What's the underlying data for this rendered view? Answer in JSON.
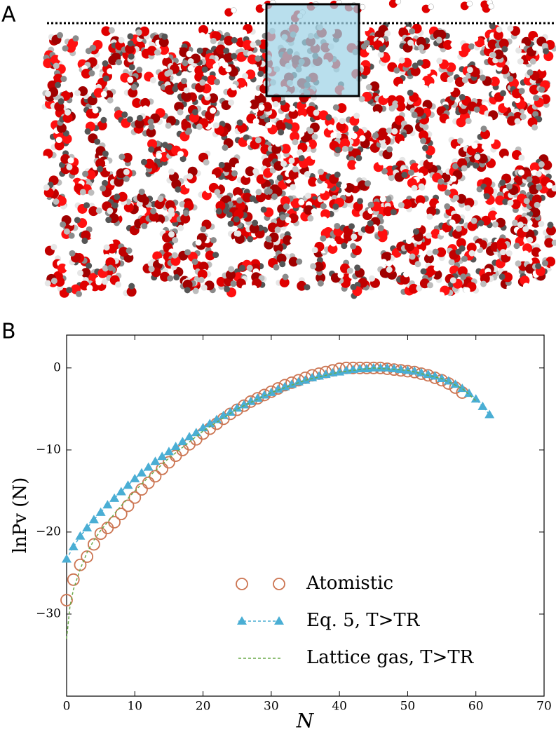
{
  "figure": {
    "panel_a_label": "A",
    "panel_b_label": "B"
  },
  "chart_data": {
    "type": "line",
    "xlabel": "N",
    "ylabel": "lnPv (N)",
    "xlim": [
      0,
      70
    ],
    "ylim": [
      -40,
      4
    ],
    "xticks": [
      0,
      10,
      20,
      30,
      40,
      50,
      60,
      70
    ],
    "yticks": [
      {
        "value": -30,
        "label": "−30"
      },
      {
        "value": -20,
        "label": "−20"
      },
      {
        "value": -10,
        "label": "−10"
      },
      0
    ],
    "legend": "lower right",
    "series": [
      {
        "name": "Atomistic",
        "color": "#cc7552",
        "marker": "circle",
        "linestyle": "none",
        "x": [
          0,
          1,
          2,
          3,
          4,
          5,
          6,
          7,
          8,
          9,
          10,
          11,
          12,
          13,
          14,
          15,
          16,
          17,
          18,
          19,
          20,
          21,
          22,
          23,
          24,
          25,
          26,
          27,
          28,
          29,
          30,
          31,
          32,
          33,
          34,
          35,
          36,
          37,
          38,
          39,
          40,
          41,
          42,
          43,
          44,
          45,
          46,
          47,
          48,
          49,
          50,
          51,
          52,
          53,
          54,
          55,
          56,
          57,
          58
        ],
        "values": [
          -28.3,
          -25.8,
          -24,
          -23,
          -21.5,
          -20.2,
          -19.5,
          -18.8,
          -17.8,
          -16.8,
          -15.8,
          -14.8,
          -14,
          -13.2,
          -12.3,
          -11.5,
          -10.7,
          -10,
          -9.3,
          -8.7,
          -8,
          -7.4,
          -6.8,
          -6.2,
          -5.6,
          -5.1,
          -4.6,
          -4.1,
          -3.7,
          -3.3,
          -2.9,
          -2.5,
          -2.1,
          -1.8,
          -1.5,
          -1.2,
          -0.9,
          -0.7,
          -0.5,
          -0.3,
          -0.1,
          0,
          0,
          0,
          0,
          0,
          0,
          -0.1,
          -0.2,
          -0.3,
          -0.4,
          -0.5,
          -0.7,
          -0.9,
          -1.2,
          -1.5,
          -1.9,
          -2.4,
          -3
        ]
      },
      {
        "name": "Eq. 5, T>TR",
        "color": "#4aaed4",
        "marker": "triangle",
        "linestyle": "dashed",
        "x": [
          0,
          1,
          2,
          3,
          4,
          5,
          6,
          7,
          8,
          9,
          10,
          11,
          12,
          13,
          14,
          15,
          16,
          17,
          18,
          19,
          20,
          21,
          22,
          23,
          24,
          25,
          26,
          27,
          28,
          29,
          30,
          31,
          32,
          33,
          34,
          35,
          36,
          37,
          38,
          39,
          40,
          41,
          42,
          43,
          44,
          45,
          46,
          47,
          48,
          49,
          50,
          51,
          52,
          53,
          54,
          55,
          56,
          57,
          58,
          59,
          60,
          61,
          62
        ],
        "values": [
          -23.3,
          -21.8,
          -20.5,
          -19.5,
          -18.5,
          -17.6,
          -16.7,
          -15.9,
          -15.1,
          -14.3,
          -13.5,
          -12.8,
          -12.1,
          -11.4,
          -10.8,
          -10.2,
          -9.6,
          -9,
          -8.4,
          -7.9,
          -7.3,
          -6.8,
          -6.3,
          -5.8,
          -5.4,
          -4.9,
          -4.5,
          -4.1,
          -3.7,
          -3.3,
          -3,
          -2.6,
          -2.3,
          -2,
          -1.7,
          -1.5,
          -1.2,
          -1,
          -0.8,
          -0.6,
          -0.5,
          -0.3,
          -0.2,
          -0.1,
          -0.1,
          0,
          0,
          0,
          -0.1,
          -0.2,
          -0.3,
          -0.4,
          -0.6,
          -0.8,
          -1,
          -1.3,
          -1.6,
          -2,
          -2.5,
          -3.1,
          -3.8,
          -4.7,
          -5.7
        ]
      },
      {
        "name": "Lattice gas, T>TR",
        "color": "#6aaa4a",
        "marker": "none",
        "linestyle": "dashed",
        "x": [
          0,
          0.5,
          1,
          2,
          3,
          4,
          5,
          6,
          8,
          10,
          12,
          15,
          20,
          25,
          30,
          35,
          40,
          45,
          50,
          55,
          58,
          60
        ],
        "values": [
          -33,
          -29,
          -27,
          -24.5,
          -22.5,
          -21,
          -19.8,
          -18.8,
          -16.8,
          -15,
          -13.3,
          -11,
          -7.7,
          -5,
          -3,
          -1.5,
          -0.5,
          0,
          -0.3,
          -1.3,
          -2.5,
          -4
        ]
      }
    ]
  }
}
